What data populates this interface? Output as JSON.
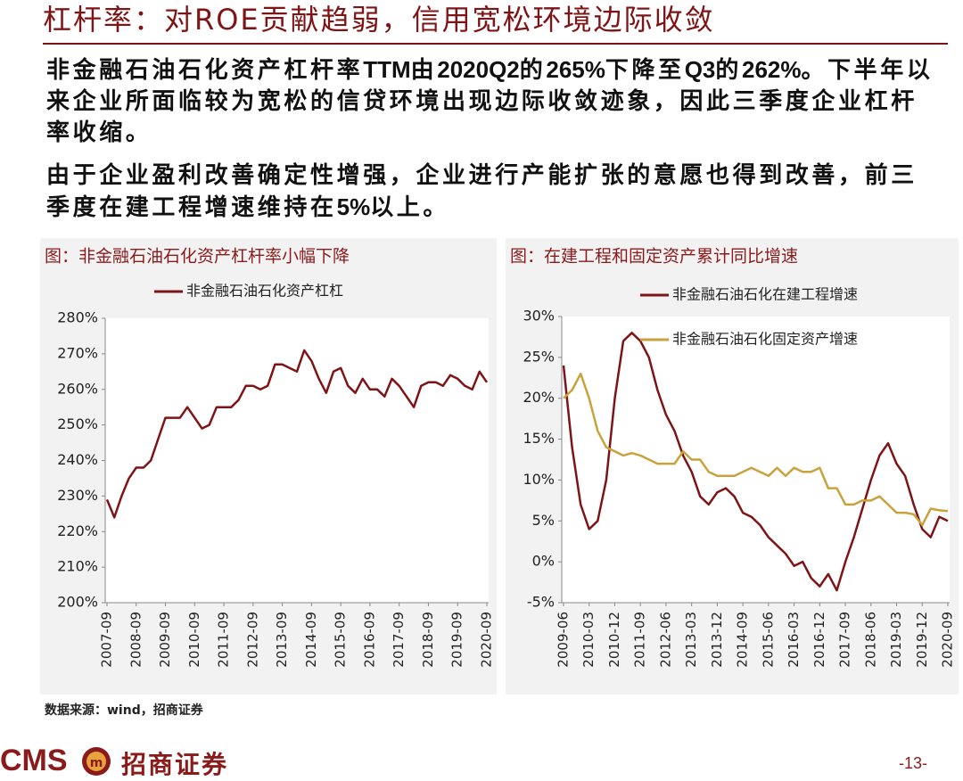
{
  "title": "杠杆率：对ROE贡献趋弱，信用宽松环境边际收敛",
  "paragraphs": [
    {
      "runs": [
        {
          "text": "非金融石油石化资产杠杆率"
        },
        {
          "text": "TTM",
          "bold": true
        },
        {
          "text": "由"
        },
        {
          "text": "2020Q2",
          "bold": true
        },
        {
          "text": "的"
        },
        {
          "text": "265%",
          "bold": true
        },
        {
          "text": "下降至"
        },
        {
          "text": "Q3",
          "bold": true
        },
        {
          "text": "的"
        },
        {
          "text": "262%",
          "bold": true
        },
        {
          "text": "。下半年以来企业所面临较为宽松的信贷环境出现边际收敛迹象，因此三季度企业杠杆率收缩。"
        }
      ]
    },
    {
      "runs": [
        {
          "text": "由于企业盈利改善确定性增强，企业进行产能扩张的意愿也得到改善，前三季度在建工程增速维持在"
        },
        {
          "text": "5%",
          "bold": true
        },
        {
          "text": "以上。"
        }
      ]
    }
  ],
  "chart_data": [
    {
      "type": "line",
      "title": "图：非金融石油石化资产杠杆率小幅下降",
      "legend": "top",
      "grid": false,
      "categories": [
        "2007-09",
        null,
        null,
        null,
        "2008-09",
        null,
        null,
        null,
        "2009-09",
        null,
        null,
        null,
        "2010-09",
        null,
        null,
        null,
        "2011-09",
        null,
        null,
        null,
        "2012-09",
        null,
        null,
        null,
        "2013-09",
        null,
        null,
        null,
        "2014-09",
        null,
        null,
        null,
        "2015-09",
        null,
        null,
        null,
        "2016-09",
        null,
        null,
        null,
        "2017-09",
        null,
        null,
        null,
        "2018-09",
        null,
        null,
        null,
        "2019-09",
        null,
        null,
        null,
        "2020-09"
      ],
      "series": [
        {
          "name": "非金融石油石化资产杠杠",
          "color": "#7f1416",
          "values": [
            229,
            224,
            230,
            235,
            238,
            238,
            240,
            246,
            252,
            252,
            252,
            255,
            252,
            249,
            250,
            255,
            255,
            255,
            257,
            261,
            261,
            260,
            261,
            267,
            267,
            266,
            265,
            271,
            268,
            263,
            259,
            265,
            266,
            261,
            259,
            263,
            260,
            260,
            258,
            263,
            261,
            258,
            255,
            261,
            262,
            262,
            261,
            264,
            263,
            261,
            260,
            265,
            262
          ]
        }
      ],
      "ylim": [
        200,
        280
      ],
      "yticks": [
        {
          "value": 200,
          "label": "200%"
        },
        {
          "value": 210,
          "label": "210%"
        },
        {
          "value": 220,
          "label": "220%"
        },
        {
          "value": 230,
          "label": "230%"
        },
        {
          "value": 240,
          "label": "240%"
        },
        {
          "value": 250,
          "label": "250%"
        },
        {
          "value": 260,
          "label": "260%"
        },
        {
          "value": 270,
          "label": "270%"
        },
        {
          "value": 280,
          "label": "280%"
        }
      ]
    },
    {
      "type": "line",
      "title": "图：在建工程和固定资产累计同比增速",
      "legend": "upper left",
      "grid": false,
      "categories": [
        "2009-06",
        null,
        null,
        "2010-03",
        null,
        null,
        "2010-12",
        null,
        null,
        "2011-09",
        null,
        null,
        "2012-06",
        null,
        null,
        "2013-03",
        null,
        null,
        "2013-12",
        null,
        null,
        "2014-09",
        null,
        null,
        "2015-06",
        null,
        null,
        "2016-03",
        null,
        null,
        "2016-12",
        null,
        null,
        "2017-09",
        null,
        null,
        "2018-06",
        null,
        null,
        "2019-03",
        null,
        null,
        "2019-12",
        null,
        null,
        "2020-09"
      ],
      "series": [
        {
          "name": "非金融石油石化在建工程增速",
          "color": "#7f1416",
          "values": [
            24,
            14,
            7,
            4,
            5,
            10,
            20,
            27,
            28,
            27,
            25,
            21,
            18,
            16,
            13,
            11,
            8,
            7,
            8.5,
            9,
            8,
            6,
            5.5,
            4.5,
            3,
            2,
            1,
            -0.5,
            0,
            -2,
            -3,
            -1.5,
            -3.5,
            0,
            3,
            6.5,
            10,
            13,
            14.5,
            12,
            10.5,
            7,
            4,
            3,
            5.5,
            5
          ]
        },
        {
          "name": "非金融石油石化固定资产增速",
          "color": "#c9a23c",
          "values": [
            20,
            21,
            23,
            20,
            16,
            14,
            13.5,
            13,
            13.3,
            13,
            12.5,
            12,
            12,
            12,
            13.5,
            12.5,
            12.5,
            11,
            10.5,
            10.5,
            10.5,
            11,
            11.5,
            11,
            10.5,
            11.5,
            10.5,
            11.5,
            11,
            11,
            11.5,
            9,
            9,
            7,
            7,
            7.5,
            7.5,
            8,
            7,
            6,
            6,
            5.8,
            4.5,
            6.5,
            6.3,
            6.2
          ]
        }
      ],
      "ylim": [
        -5,
        30
      ],
      "yticks": [
        {
          "value": -5,
          "label": "-5%"
        },
        {
          "value": 0,
          "label": "0%"
        },
        {
          "value": 5,
          "label": "5%"
        },
        {
          "value": 10,
          "label": "10%"
        },
        {
          "value": 15,
          "label": "15%"
        },
        {
          "value": 20,
          "label": "20%"
        },
        {
          "value": 25,
          "label": "25%"
        },
        {
          "value": 30,
          "label": "30%"
        }
      ]
    }
  ],
  "source": "数据来源：wind，招商证券",
  "footer": {
    "brand_en": "CMS",
    "brand_cn": "招商证券",
    "page": "-13-"
  }
}
